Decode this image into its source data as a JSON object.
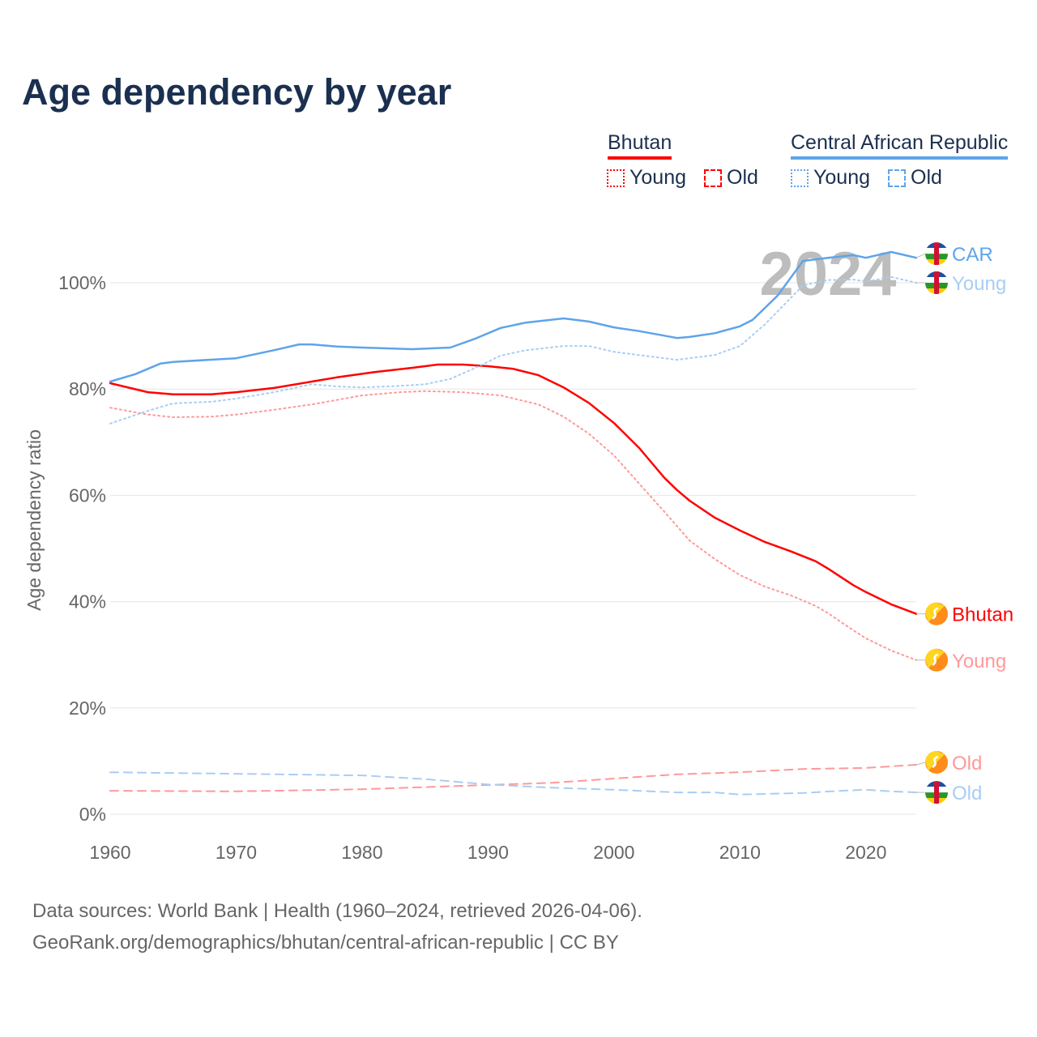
{
  "title": "Age dependency by year",
  "legend": {
    "groups": [
      {
        "name": "Bhutan",
        "color": "#ff0000",
        "items": [
          "Young",
          "Old"
        ]
      },
      {
        "name": "Central African Republic",
        "color": "#5ea4ea",
        "items": [
          "Young",
          "Old"
        ]
      }
    ]
  },
  "watermark_year": "2024",
  "footer": {
    "line1": "Data sources: World Bank | Health (1960–2024, retrieved 2026-04-06).",
    "line2": "GeoRank.org/demographics/bhutan/central-african-republic | CC BY"
  },
  "chart_data": {
    "type": "line",
    "title": "Age dependency by year",
    "xlabel": "",
    "ylabel": "Age dependency ratio",
    "xlim": [
      1960,
      2024
    ],
    "ylim": [
      0,
      110
    ],
    "x_ticks": [
      "1960",
      "1970",
      "1980",
      "1990",
      "2000",
      "2010",
      "2020"
    ],
    "y_ticks": [
      "0%",
      "20%",
      "40%",
      "60%",
      "80%",
      "100%"
    ],
    "grid": true,
    "series": [
      {
        "name": "Bhutan",
        "end_label": "Bhutan",
        "country": "Bhutan",
        "kind": "total",
        "color": "#ff0000",
        "points": [
          [
            1960,
            81.1
          ],
          [
            1963,
            79.4
          ],
          [
            1965,
            79.0
          ],
          [
            1968,
            79.0
          ],
          [
            1970,
            79.4
          ],
          [
            1973,
            80.2
          ],
          [
            1976,
            81.4
          ],
          [
            1978,
            82.2
          ],
          [
            1981,
            83.2
          ],
          [
            1984,
            84.0
          ],
          [
            1986,
            84.6
          ],
          [
            1988,
            84.6
          ],
          [
            1990,
            84.3
          ],
          [
            1992,
            83.8
          ],
          [
            1994,
            82.6
          ],
          [
            1996,
            80.3
          ],
          [
            1998,
            77.4
          ],
          [
            2000,
            73.6
          ],
          [
            2002,
            68.9
          ],
          [
            2004,
            63.3
          ],
          [
            2005,
            61.0
          ],
          [
            2006,
            59.0
          ],
          [
            2008,
            55.8
          ],
          [
            2010,
            53.4
          ],
          [
            2012,
            51.2
          ],
          [
            2014,
            49.5
          ],
          [
            2016,
            47.6
          ],
          [
            2017,
            46.2
          ],
          [
            2019,
            43.1
          ],
          [
            2020,
            41.8
          ],
          [
            2022,
            39.5
          ],
          [
            2024,
            37.7
          ]
        ]
      },
      {
        "name": "Bhutan Young",
        "end_label": "Young",
        "country": "Bhutan",
        "kind": "young",
        "color": "#ff9999",
        "points": [
          [
            1960,
            76.5
          ],
          [
            1963,
            75.2
          ],
          [
            1965,
            74.7
          ],
          [
            1968,
            74.8
          ],
          [
            1970,
            75.2
          ],
          [
            1973,
            76.1
          ],
          [
            1976,
            77.1
          ],
          [
            1980,
            78.8
          ],
          [
            1983,
            79.4
          ],
          [
            1985,
            79.6
          ],
          [
            1988,
            79.4
          ],
          [
            1991,
            78.8
          ],
          [
            1994,
            77.1
          ],
          [
            1996,
            74.8
          ],
          [
            1998,
            71.6
          ],
          [
            2000,
            67.5
          ],
          [
            2002,
            62.2
          ],
          [
            2004,
            56.9
          ],
          [
            2006,
            51.5
          ],
          [
            2008,
            48.0
          ],
          [
            2010,
            45.0
          ],
          [
            2012,
            42.8
          ],
          [
            2014,
            41.2
          ],
          [
            2016,
            39.2
          ],
          [
            2017,
            37.8
          ],
          [
            2019,
            34.6
          ],
          [
            2020,
            33.1
          ],
          [
            2022,
            30.8
          ],
          [
            2024,
            29.0
          ]
        ]
      },
      {
        "name": "Bhutan Old",
        "end_label": "Old",
        "country": "Bhutan",
        "kind": "old",
        "color": "#ff9999",
        "points": [
          [
            1960,
            4.4
          ],
          [
            1970,
            4.3
          ],
          [
            1980,
            4.7
          ],
          [
            1990,
            5.5
          ],
          [
            1995,
            5.9
          ],
          [
            2000,
            6.7
          ],
          [
            2005,
            7.5
          ],
          [
            2010,
            7.9
          ],
          [
            2015,
            8.5
          ],
          [
            2020,
            8.7
          ],
          [
            2024,
            9.3
          ]
        ]
      },
      {
        "name": "CAR",
        "end_label": "CAR",
        "country": "CAR",
        "kind": "total",
        "color": "#5ea4ea",
        "points": [
          [
            1960,
            81.4
          ],
          [
            1962,
            82.8
          ],
          [
            1964,
            84.8
          ],
          [
            1965,
            85.1
          ],
          [
            1970,
            85.8
          ],
          [
            1973,
            87.3
          ],
          [
            1975,
            88.4
          ],
          [
            1976,
            88.4
          ],
          [
            1978,
            88.0
          ],
          [
            1980,
            87.8
          ],
          [
            1984,
            87.5
          ],
          [
            1987,
            87.8
          ],
          [
            1989,
            89.5
          ],
          [
            1991,
            91.5
          ],
          [
            1993,
            92.5
          ],
          [
            1996,
            93.3
          ],
          [
            1998,
            92.7
          ],
          [
            2000,
            91.6
          ],
          [
            2002,
            90.9
          ],
          [
            2005,
            89.6
          ],
          [
            2006,
            89.8
          ],
          [
            2008,
            90.5
          ],
          [
            2010,
            91.8
          ],
          [
            2011,
            93.0
          ],
          [
            2013,
            97.6
          ],
          [
            2015,
            104.1
          ],
          [
            2017,
            104.7
          ],
          [
            2019,
            105.2
          ],
          [
            2020,
            104.7
          ],
          [
            2022,
            105.8
          ],
          [
            2024,
            104.7
          ]
        ]
      },
      {
        "name": "CAR Young",
        "end_label": "Young",
        "country": "CAR",
        "kind": "young",
        "color": "#a9cdf3",
        "points": [
          [
            1960,
            73.5
          ],
          [
            1963,
            75.9
          ],
          [
            1965,
            77.3
          ],
          [
            1968,
            77.6
          ],
          [
            1970,
            78.2
          ],
          [
            1973,
            79.4
          ],
          [
            1976,
            80.9
          ],
          [
            1978,
            80.5
          ],
          [
            1980,
            80.3
          ],
          [
            1983,
            80.6
          ],
          [
            1985,
            80.9
          ],
          [
            1987,
            81.9
          ],
          [
            1989,
            84.0
          ],
          [
            1991,
            86.3
          ],
          [
            1993,
            87.3
          ],
          [
            1996,
            88.1
          ],
          [
            1998,
            88.1
          ],
          [
            2000,
            87.0
          ],
          [
            2003,
            86.1
          ],
          [
            2005,
            85.5
          ],
          [
            2008,
            86.4
          ],
          [
            2010,
            88.1
          ],
          [
            2012,
            92.2
          ],
          [
            2015,
            99.5
          ],
          [
            2017,
            100.5
          ],
          [
            2019,
            100.6
          ],
          [
            2020,
            100.2
          ],
          [
            2022,
            101.1
          ],
          [
            2024,
            100.0
          ]
        ]
      },
      {
        "name": "CAR Old",
        "end_label": "Old",
        "country": "CAR",
        "kind": "old",
        "color": "#a9cdf3",
        "points": [
          [
            1960,
            7.9
          ],
          [
            1970,
            7.6
          ],
          [
            1980,
            7.3
          ],
          [
            1985,
            6.6
          ],
          [
            1990,
            5.6
          ],
          [
            1995,
            5.0
          ],
          [
            2000,
            4.6
          ],
          [
            2005,
            4.1
          ],
          [
            2008,
            4.1
          ],
          [
            2010,
            3.7
          ],
          [
            2015,
            4.0
          ],
          [
            2018,
            4.4
          ],
          [
            2020,
            4.6
          ],
          [
            2022,
            4.3
          ],
          [
            2024,
            4.1
          ]
        ]
      }
    ]
  }
}
